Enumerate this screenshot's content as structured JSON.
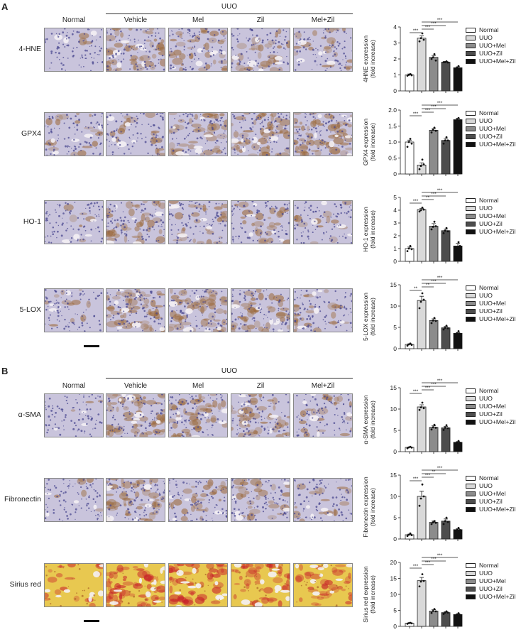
{
  "panels": [
    {
      "letter": "A",
      "columns": [
        "Normal",
        "Vehicle",
        "Mel",
        "Zil",
        "Mel+Zil"
      ],
      "group_label": "UUO",
      "rows": [
        "4-HNE",
        "GPX4",
        "HO-1",
        "5-LOX"
      ]
    },
    {
      "letter": "B",
      "columns": [
        "Normal",
        "Vehicle",
        "Mel",
        "Zil",
        "Mel+Zil"
      ],
      "group_label": "UUO",
      "rows": [
        "α-SMA",
        "Fibronectin",
        "Sirius red"
      ]
    }
  ],
  "legend_entries": [
    "Normal",
    "UUO",
    "UUO+Mel",
    "UUO+Zil",
    "UUO+Mel+Zil"
  ],
  "colors": {
    "groups": [
      "#ffffff",
      "#d9d9d9",
      "#8c8c8c",
      "#4d4d4d",
      "#111111"
    ],
    "he_background": "#c9c4dc",
    "he_nuclei": "#4a4890",
    "dab_brown": "#9c6a3c",
    "sirius_background": "#e8c850",
    "sirius_red": "#c8222a"
  },
  "chart_data": [
    {
      "type": "bar",
      "categories": [
        "Normal",
        "UUO",
        "UUO+Mel",
        "UUO+Zil",
        "UUO+Mel+Zil"
      ],
      "values": [
        1.0,
        3.3,
        2.1,
        1.8,
        1.45
      ],
      "errors": [
        0.06,
        0.15,
        0.12,
        0.04,
        0.06
      ],
      "points": [
        [
          0.95,
          1.0,
          1.05,
          0.98
        ],
        [
          3.1,
          3.3,
          3.6,
          3.2
        ],
        [
          2.0,
          2.1,
          2.3,
          1.9
        ],
        [
          1.8,
          1.8,
          1.85,
          1.78
        ],
        [
          1.4,
          1.45,
          1.55,
          1.4
        ]
      ],
      "significance": [
        "***",
        "***",
        "***",
        "***"
      ],
      "ylabel": "4HNE expression",
      "ylabel_unit": "(fold increase)",
      "ylim": [
        0,
        4
      ],
      "yticks": [
        "0",
        "1",
        "2",
        "3",
        "4"
      ]
    },
    {
      "type": "bar",
      "categories": [
        "Normal",
        "UUO",
        "UUO+Mel",
        "UUO+Zil",
        "UUO+Mel+Zil"
      ],
      "values": [
        1.0,
        0.28,
        1.37,
        1.05,
        1.7
      ],
      "errors": [
        0.06,
        0.07,
        0.05,
        0.07,
        0.04
      ],
      "points": [
        [
          0.85,
          1.0,
          1.1,
          0.95
        ],
        [
          0.15,
          0.25,
          0.45,
          0.3
        ],
        [
          1.3,
          1.38,
          1.45,
          1.35
        ],
        [
          0.95,
          1.05,
          1.15,
          1.05
        ],
        [
          1.65,
          1.7,
          1.75,
          1.68
        ]
      ],
      "significance": [
        "***",
        "***",
        "***",
        "***"
      ],
      "ylabel": "GPX4 expression",
      "ylabel_unit": "(fold increase)",
      "ylim": [
        0,
        2.0
      ],
      "yticks": [
        "0",
        "0.5",
        "1.0",
        "1.5",
        "2.0"
      ]
    },
    {
      "type": "bar",
      "categories": [
        "Normal",
        "UUO",
        "UUO+Mel",
        "UUO+Zil",
        "UUO+Mel+Zil"
      ],
      "values": [
        1.0,
        4.05,
        2.75,
        2.4,
        1.2
      ],
      "errors": [
        0.12,
        0.1,
        0.2,
        0.12,
        0.2
      ],
      "points": [
        [
          0.8,
          1.0,
          1.2,
          0.95
        ],
        [
          3.9,
          4.0,
          4.2,
          4.05
        ],
        [
          2.5,
          2.7,
          3.1,
          2.75
        ],
        [
          2.2,
          2.4,
          2.6,
          2.35
        ],
        [
          0.9,
          1.1,
          1.5,
          1.2
        ]
      ],
      "significance": [
        "***",
        "**",
        "***",
        "***"
      ],
      "ylabel": "HO-1 expression",
      "ylabel_unit": "(fold increase)",
      "ylim": [
        0,
        5
      ],
      "yticks": [
        "0",
        "1",
        "2",
        "3",
        "4",
        "5"
      ]
    },
    {
      "type": "bar",
      "categories": [
        "Normal",
        "UUO",
        "UUO+Mel",
        "UUO+Zil",
        "UUO+Mel+Zil"
      ],
      "values": [
        1.0,
        11.3,
        6.6,
        4.9,
        3.6
      ],
      "errors": [
        0.15,
        1.0,
        0.4,
        0.3,
        0.2
      ],
      "points": [
        [
          0.7,
          1.0,
          1.2,
          0.9
        ],
        [
          9.5,
          11.0,
          13.0,
          11.5
        ],
        [
          6.0,
          6.6,
          7.2,
          6.5
        ],
        [
          4.5,
          4.9,
          5.4,
          4.8
        ],
        [
          3.2,
          3.6,
          4.1,
          3.5
        ]
      ],
      "significance": [
        "**",
        "**",
        "***",
        "***"
      ],
      "ylabel": "5-LOX expression",
      "ylabel_unit": "(fold increase)",
      "ylim": [
        0,
        15
      ],
      "yticks": [
        "0",
        "5",
        "10",
        "15"
      ]
    },
    {
      "type": "bar",
      "categories": [
        "Normal",
        "UUO",
        "UUO+Mel",
        "UUO+Zil",
        "UUO+Mel+Zil"
      ],
      "values": [
        1.0,
        10.5,
        5.7,
        5.6,
        2.2
      ],
      "errors": [
        0.1,
        0.5,
        0.35,
        0.35,
        0.15
      ],
      "points": [
        [
          0.8,
          1.0,
          1.15,
          0.95
        ],
        [
          9.8,
          10.4,
          11.5,
          10.2
        ],
        [
          5.2,
          5.7,
          6.3,
          5.6
        ],
        [
          5.1,
          5.6,
          6.2,
          5.5
        ],
        [
          1.9,
          2.2,
          2.5,
          2.1
        ]
      ],
      "significance": [
        "***",
        "***",
        "***",
        "***"
      ],
      "ylabel": "α-SMA expression",
      "ylabel_unit": "(fold increase)",
      "ylim": [
        0,
        15
      ],
      "yticks": [
        "0",
        "5",
        "10",
        "15"
      ]
    },
    {
      "type": "bar",
      "categories": [
        "Normal",
        "UUO",
        "UUO+Mel",
        "UUO+Zil",
        "UUO+Mel+Zil"
      ],
      "values": [
        1.0,
        10.0,
        3.9,
        4.2,
        2.2
      ],
      "errors": [
        0.15,
        1.2,
        0.3,
        0.5,
        0.2
      ],
      "points": [
        [
          0.7,
          1.0,
          1.3,
          0.9
        ],
        [
          7.8,
          9.5,
          12.8,
          10.0
        ],
        [
          3.5,
          3.9,
          4.2,
          3.8
        ],
        [
          3.5,
          4.2,
          5.0,
          4.0
        ],
        [
          1.9,
          2.2,
          2.6,
          2.1
        ]
      ],
      "significance": [
        "***",
        "***",
        "**",
        "***"
      ],
      "ylabel": "Fibronectin expression",
      "ylabel_unit": "(fold increase)",
      "ylim": [
        0,
        15
      ],
      "yticks": [
        "0",
        "5",
        "10",
        "15"
      ]
    },
    {
      "type": "bar",
      "categories": [
        "Normal",
        "UUO",
        "UUO+Mel",
        "UUO+Zil",
        "UUO+Mel+Zil"
      ],
      "values": [
        1.0,
        14.3,
        4.8,
        4.3,
        3.7
      ],
      "errors": [
        0.1,
        1.0,
        0.4,
        0.25,
        0.25
      ],
      "points": [
        [
          0.8,
          1.0,
          1.1,
          0.95
        ],
        [
          12.5,
          14.0,
          16.3,
          14.2
        ],
        [
          4.2,
          4.8,
          5.4,
          4.7
        ],
        [
          3.9,
          4.3,
          4.7,
          4.3
        ],
        [
          3.3,
          3.7,
          4.1,
          3.6
        ]
      ],
      "significance": [
        "***",
        "***",
        "***",
        "***"
      ],
      "ylabel": "Sirius red expression",
      "ylabel_unit": "(fold increase)",
      "ylim": [
        0,
        20
      ],
      "yticks": [
        "0",
        "5",
        "10",
        "15",
        "20"
      ]
    }
  ]
}
